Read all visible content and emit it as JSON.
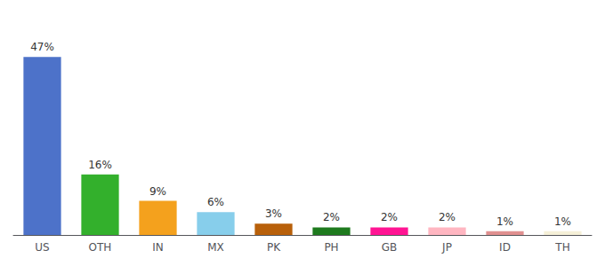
{
  "chart_data": {
    "type": "bar",
    "categories": [
      "US",
      "OTH",
      "IN",
      "MX",
      "PK",
      "PH",
      "GB",
      "JP",
      "ID",
      "TH"
    ],
    "values": [
      47,
      16,
      9,
      6,
      3,
      2,
      2,
      2,
      1,
      1
    ],
    "value_labels": [
      "47%",
      "16%",
      "9%",
      "6%",
      "3%",
      "2%",
      "2%",
      "2%",
      "1%",
      "1%"
    ],
    "colors": [
      "#4d72c9",
      "#33b02c",
      "#F4A11D",
      "#87CEEB",
      "#B8600A",
      "#1e7a1e",
      "#FF1493",
      "#FFB6C1",
      "#E09090",
      "#F5F0D8"
    ],
    "ylim": [
      0,
      55
    ],
    "data_labels": true,
    "tick_labels": "x",
    "grid": false
  }
}
